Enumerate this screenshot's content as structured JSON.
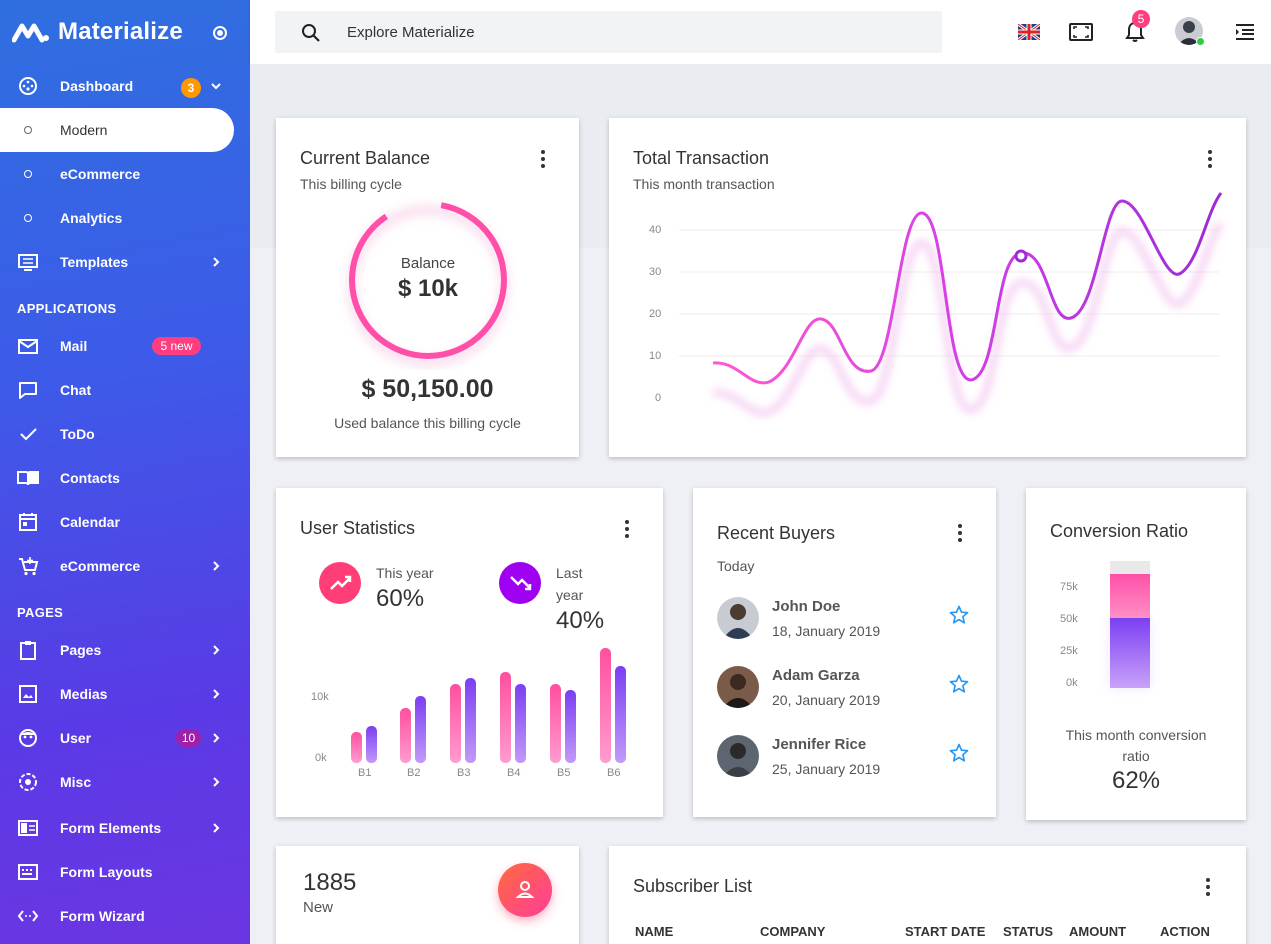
{
  "brand": {
    "name": "Materialize"
  },
  "sidebar": {
    "dashboard": {
      "label": "Dashboard",
      "badge": "3"
    },
    "sub_items": [
      "Modern",
      "eCommerce",
      "Analytics"
    ],
    "templates": "Templates",
    "applications_title": "APPLICATIONS",
    "mail": {
      "label": "Mail",
      "badge": "5 new"
    },
    "chat": "Chat",
    "todo": "ToDo",
    "contacts": "Contacts",
    "calendar": "Calendar",
    "ecommerce": "eCommerce",
    "pages_title": "PAGES",
    "pages": "Pages",
    "medias": "Medias",
    "user": {
      "label": "User",
      "badge": "10"
    },
    "misc": "Misc",
    "form_elements": "Form Elements",
    "form_layouts": "Form Layouts",
    "form_wizard": "Form Wizard"
  },
  "topbar": {
    "search_placeholder": "Explore Materialize",
    "notification_count": "5"
  },
  "current_balance": {
    "title": "Current Balance",
    "subtitle": "This billing cycle",
    "center_label": "Balance",
    "center_value": "$ 10k",
    "amount": "$ 50,150.00",
    "caption": "Used balance this billing cycle"
  },
  "total_transaction": {
    "title": "Total Transaction",
    "subtitle": "This month transaction",
    "y_ticks": [
      "40",
      "30",
      "20",
      "10",
      "0"
    ]
  },
  "user_statistics": {
    "title": "User Statistics",
    "this_year_label": "This year",
    "this_year_value": "60%",
    "last_year_label_1": "Last",
    "last_year_label_2": "year",
    "last_year_value": "40%",
    "y_ticks": [
      "10k",
      "0k"
    ],
    "x_labels": [
      "B1",
      "B2",
      "B3",
      "B4",
      "B5",
      "B6"
    ]
  },
  "recent_buyers": {
    "title": "Recent Buyers",
    "subtitle": "Today",
    "buyers": [
      {
        "name": "John Doe",
        "date": "18, January 2019"
      },
      {
        "name": "Adam Garza",
        "date": "20, January 2019"
      },
      {
        "name": "Jennifer Rice",
        "date": "25, January 2019"
      }
    ]
  },
  "conversion_ratio": {
    "title": "Conversion Ratio",
    "y_ticks": [
      "75k",
      "50k",
      "25k",
      "0k"
    ],
    "caption_1": "This month conversion",
    "caption_2": "ratio",
    "value": "62%"
  },
  "new_users": {
    "count": "1885",
    "label": "New"
  },
  "subscriber_list": {
    "title": "Subscriber List",
    "columns": [
      "NAME",
      "COMPANY",
      "START DATE",
      "STATUS",
      "AMOUNT",
      "ACTION"
    ]
  },
  "colors": {
    "accent_pink": "#ff4fa8",
    "accent_purple": "#9b2fe0",
    "sidebar_blue": "#2f6fe0"
  }
}
